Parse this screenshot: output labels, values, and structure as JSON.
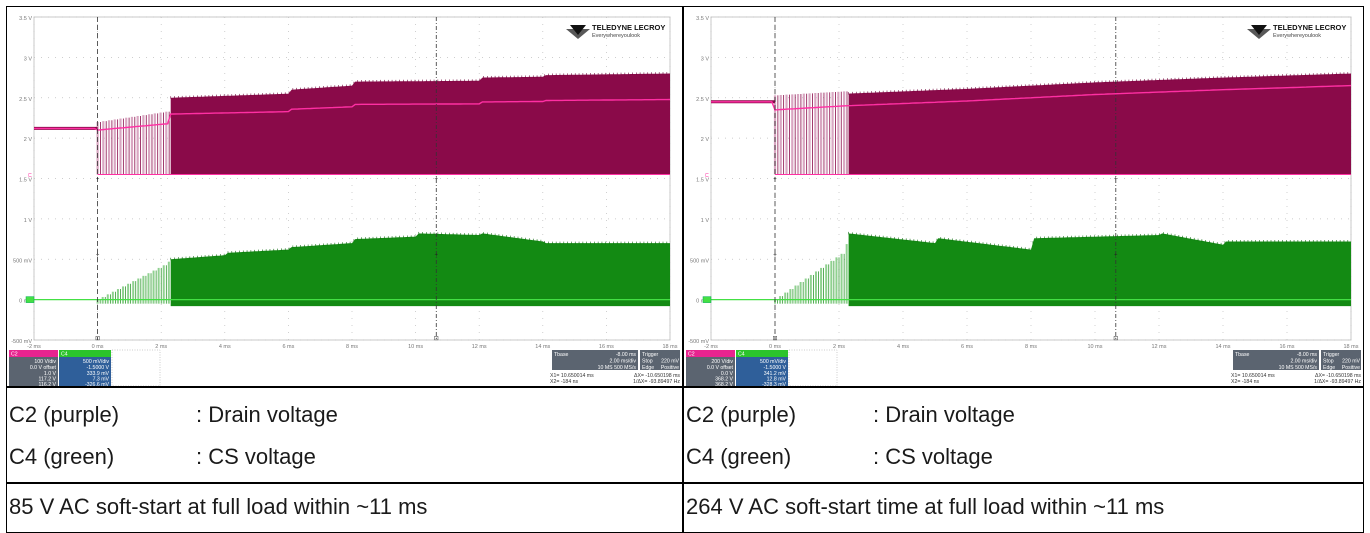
{
  "colors": {
    "drain": "#8a0a49",
    "drain_light": "#d9a7c2",
    "drain_trace": "#ff2fa3",
    "cs": "#138a13",
    "cs_light": "#8fd18f",
    "cs_trace": "#44e044",
    "grid_bg": "#ffffff",
    "info_bg": "#5b6470"
  },
  "logo": {
    "brand": "TELEDYNE LECROY",
    "tagline": "Everywhereyoulook"
  },
  "chart_data": [
    {
      "type": "line",
      "title": "",
      "xlabel": "",
      "ylabel": "",
      "x_ticks": [
        "-2 ms",
        "0 ms",
        "2 ms",
        "4 ms",
        "6 ms",
        "8 ms",
        "10 ms",
        "12 ms",
        "14 ms",
        "16 ms",
        "18 ms"
      ],
      "y_ticks": [
        "3.5 V",
        "3 V",
        "2.5 V",
        "2 V",
        "1.5 V",
        "1 V",
        "500 mV",
        "0 mV",
        "-500 mV"
      ],
      "xlim": [
        -2,
        18
      ],
      "ylim": [
        -0.5,
        3.5
      ],
      "grid": true,
      "series": [
        {
          "name": "C2",
          "x": [
            -2,
            0,
            2.2,
            2.3,
            6,
            6.1,
            8,
            8.1,
            12,
            12.1,
            14,
            14.1,
            18
          ],
          "values": [
            2.12,
            2.12,
            2.25,
            2.45,
            2.5,
            2.55,
            2.6,
            2.65,
            2.66,
            2.7,
            2.71,
            2.73,
            2.75
          ]
        },
        {
          "name": "C4",
          "x": [
            -2,
            0,
            2.2,
            2.3,
            4,
            4.1,
            6,
            6.1,
            8,
            8.1,
            10,
            10.1,
            12,
            12.1,
            14,
            14.1,
            18
          ],
          "values": [
            0.0,
            0.0,
            0.45,
            0.5,
            0.55,
            0.58,
            0.62,
            0.65,
            0.7,
            0.75,
            0.78,
            0.82,
            0.8,
            0.82,
            0.72,
            0.7,
            0.7
          ]
        }
      ],
      "cursors_ms": [
        0,
        10.65
      ],
      "readout": {
        "c2_label": "C2",
        "c2_scale": "100 V/div",
        "c2_offset": "0.0 V offset",
        "c2_v1": "1.0 V",
        "c2_v2": "117.2 V",
        "c2_dv": "116.2 V",
        "c4_label": "C4",
        "c4_scale": "500 mV/div",
        "c4_offset": "-1.5000 V",
        "c4_v1": "333.9 mV",
        "c4_v2": "7.3 mV",
        "c4_dv": "-326.6 mV",
        "tbase": "Tbase",
        "tbase_val": "-8.00 ms",
        "trigger": "Trigger",
        "trig_val": "220 mV",
        "tdiv": "2.00 ms/div",
        "stop": "Stop",
        "srate": "10 MS  500 MS/s",
        "edge": "Edge",
        "positive": "Positive",
        "x1": "X1= 10.650014 ms",
        "dx": "ΔX= -10.650198 ms",
        "x2": "X2=  -184 ns",
        "idx": "1/ΔX= -93.89497 Hz"
      }
    },
    {
      "type": "line",
      "title": "",
      "xlabel": "",
      "ylabel": "",
      "x_ticks": [
        "-2 ms",
        "0 ms",
        "2 ms",
        "4 ms",
        "6 ms",
        "8 ms",
        "10 ms",
        "12 ms",
        "14 ms",
        "16 ms",
        "18 ms"
      ],
      "y_ticks": [
        "3.5 V",
        "3 V",
        "2.5 V",
        "2 V",
        "1.5 V",
        "1 V",
        "500 mV",
        "0 mV",
        "-500 mV"
      ],
      "xlim": [
        -2,
        18
      ],
      "ylim": [
        -0.5,
        3.5
      ],
      "grid": true,
      "series": [
        {
          "name": "C2",
          "x": [
            -2,
            0,
            2.2,
            6,
            10,
            14,
            18
          ],
          "values": [
            2.45,
            2.45,
            2.5,
            2.56,
            2.64,
            2.7,
            2.75
          ]
        },
        {
          "name": "C4",
          "x": [
            -2,
            0,
            2.2,
            2.3,
            5,
            5.1,
            8,
            8.1,
            12,
            12.1,
            14,
            14.1,
            18
          ],
          "values": [
            0.0,
            0.0,
            0.6,
            0.82,
            0.7,
            0.76,
            0.62,
            0.76,
            0.8,
            0.82,
            0.68,
            0.72,
            0.72
          ]
        }
      ],
      "cursors_ms": [
        0,
        10.65
      ],
      "readout": {
        "c2_label": "C2",
        "c2_scale": "200 V/div",
        "c2_offset": "0.0 V offset",
        "c2_v1": "0.0 V",
        "c2_v2": "368.2 V",
        "c2_dv": "368.2 V",
        "c4_label": "C4",
        "c4_scale": "500 mV/div",
        "c4_offset": "-1.5000 V",
        "c4_v1": "341.2 mV",
        "c4_v2": "12.8 mV",
        "c4_dv": "-328.3 mV",
        "tbase": "Tbase",
        "tbase_val": "-8.00 ms",
        "trigger": "Trigger",
        "trig_val": "220 mV",
        "tdiv": "2.00 ms/div",
        "stop": "Stop",
        "srate": "10 MS  500 MS/s",
        "edge": "Edge",
        "positive": "Positive",
        "x1": "X1= 10.650014 ms",
        "dx": "ΔX= -10.650198 ms",
        "x2": "X2=  -184 ns",
        "idx": "1/ΔX= -93.89497 Hz"
      }
    }
  ],
  "legend_left": [
    {
      "name": "C2 (purple)",
      "desc": ": Drain voltage"
    },
    {
      "name": "C4 (green)",
      "desc": ": CS voltage"
    }
  ],
  "legend_right": [
    {
      "name": "C2 (purple)",
      "desc": ": Drain voltage"
    },
    {
      "name": "C4 (green)",
      "desc": ": CS voltage"
    }
  ],
  "caption_left": "85 V AC soft-start at full load within ~11 ms",
  "caption_right": "264 V AC soft-start time at full load within ~11 ms"
}
